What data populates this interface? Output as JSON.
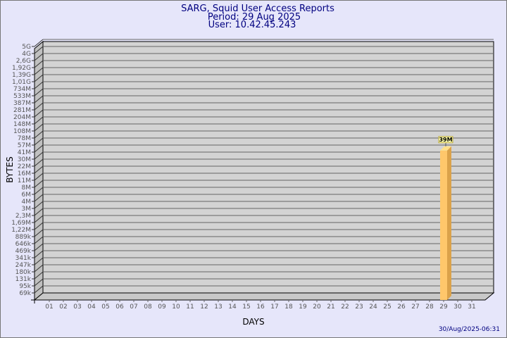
{
  "header": {
    "title": "SARG, Squid User Access Reports",
    "period": "Period: 29 Aug 2025",
    "user": "User: 10.42.45.243"
  },
  "footer": {
    "timestamp": "30/Aug/2025-06:31"
  },
  "colors": {
    "background": "#e6e6fa",
    "plot": "#d3d3d3",
    "bar": "#ffc76b",
    "bar_side": "#dba24a",
    "bar_top": "#ffe08a",
    "label_box": "#ffffaa",
    "text": "#000080"
  },
  "chart_data": {
    "type": "bar",
    "style": "3d",
    "xlabel": "DAYS",
    "ylabel": "BYTES",
    "yscale": "log",
    "grid": true,
    "yticks": [
      "5G",
      "4G",
      "2,6G",
      "1,92G",
      "1,39G",
      "1,01G",
      "734M",
      "533M",
      "387M",
      "281M",
      "204M",
      "148M",
      "108M",
      "78M",
      "57M",
      "41M",
      "30M",
      "22M",
      "16M",
      "11M",
      "8M",
      "6M",
      "4M",
      "3M",
      "2,3M",
      "1,69M",
      "1,22M",
      "889k",
      "646k",
      "469k",
      "341k",
      "247k",
      "180k",
      "131k",
      "95k",
      "69k"
    ],
    "categories": [
      "01",
      "02",
      "03",
      "04",
      "05",
      "06",
      "07",
      "08",
      "09",
      "10",
      "11",
      "12",
      "13",
      "14",
      "15",
      "16",
      "17",
      "18",
      "19",
      "20",
      "21",
      "22",
      "23",
      "24",
      "25",
      "26",
      "27",
      "28",
      "29",
      "30",
      "31"
    ],
    "values": [
      0,
      0,
      0,
      0,
      0,
      0,
      0,
      0,
      0,
      0,
      0,
      0,
      0,
      0,
      0,
      0,
      0,
      0,
      0,
      0,
      0,
      0,
      0,
      0,
      0,
      0,
      0,
      0,
      39000000,
      0,
      0
    ],
    "data_labels": {
      "29": "39M"
    }
  }
}
